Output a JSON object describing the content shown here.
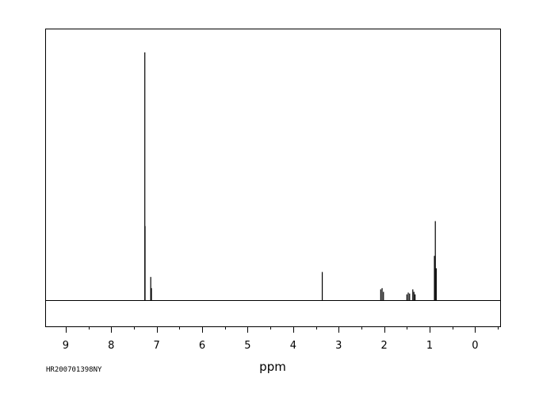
{
  "chart_data": {
    "type": "line",
    "title": "",
    "xlabel": "ppm",
    "ylabel": "",
    "sample_id": "HR200701398NY",
    "x_reversed": true,
    "xlim": [
      9.45,
      -0.55
    ],
    "ylim": [
      0,
      1
    ],
    "baseline": 0.0,
    "xticks": [
      9,
      8,
      7,
      6,
      5,
      4,
      3,
      2,
      1,
      0
    ],
    "peaks": [
      {
        "ppm": 7.26,
        "height": 1.0
      },
      {
        "ppm": 7.255,
        "height": 0.3
      },
      {
        "ppm": 7.13,
        "height": 0.095
      },
      {
        "ppm": 7.115,
        "height": 0.05
      },
      {
        "ppm": 3.36,
        "height": 0.115
      },
      {
        "ppm": 2.075,
        "height": 0.045
      },
      {
        "ppm": 2.045,
        "height": 0.05
      },
      {
        "ppm": 2.015,
        "height": 0.035
      },
      {
        "ppm": 1.5,
        "height": 0.025
      },
      {
        "ppm": 1.47,
        "height": 0.032
      },
      {
        "ppm": 1.44,
        "height": 0.028
      },
      {
        "ppm": 1.37,
        "height": 0.045
      },
      {
        "ppm": 1.345,
        "height": 0.035
      },
      {
        "ppm": 1.32,
        "height": 0.025
      },
      {
        "ppm": 0.895,
        "height": 0.18
      },
      {
        "ppm": 0.875,
        "height": 0.32
      },
      {
        "ppm": 0.855,
        "height": 0.13
      }
    ],
    "grid": false,
    "legend": "none"
  }
}
